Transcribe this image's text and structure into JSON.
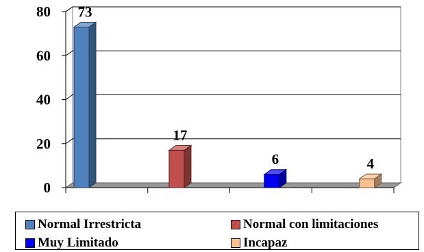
{
  "chart_data": {
    "type": "bar",
    "style": "3d",
    "title": "",
    "xlabel": "",
    "ylabel": "",
    "ylim": [
      0,
      80
    ],
    "yticks": [
      "0",
      "20",
      "40",
      "60",
      "80"
    ],
    "grid": true,
    "legend_position": "bottom",
    "series": [
      {
        "name": "Normal Irrestricta",
        "value": 73,
        "label": "73",
        "color": "#4f81bd"
      },
      {
        "name": "Normal con limitaciones",
        "value": 17,
        "label": "17",
        "color": "#c0504d"
      },
      {
        "name": "Muy Limitado",
        "value": 6,
        "label": "6",
        "color": "#0000ee"
      },
      {
        "name": "Incapaz",
        "value": 4,
        "label": "4",
        "color": "#fac090"
      }
    ]
  }
}
